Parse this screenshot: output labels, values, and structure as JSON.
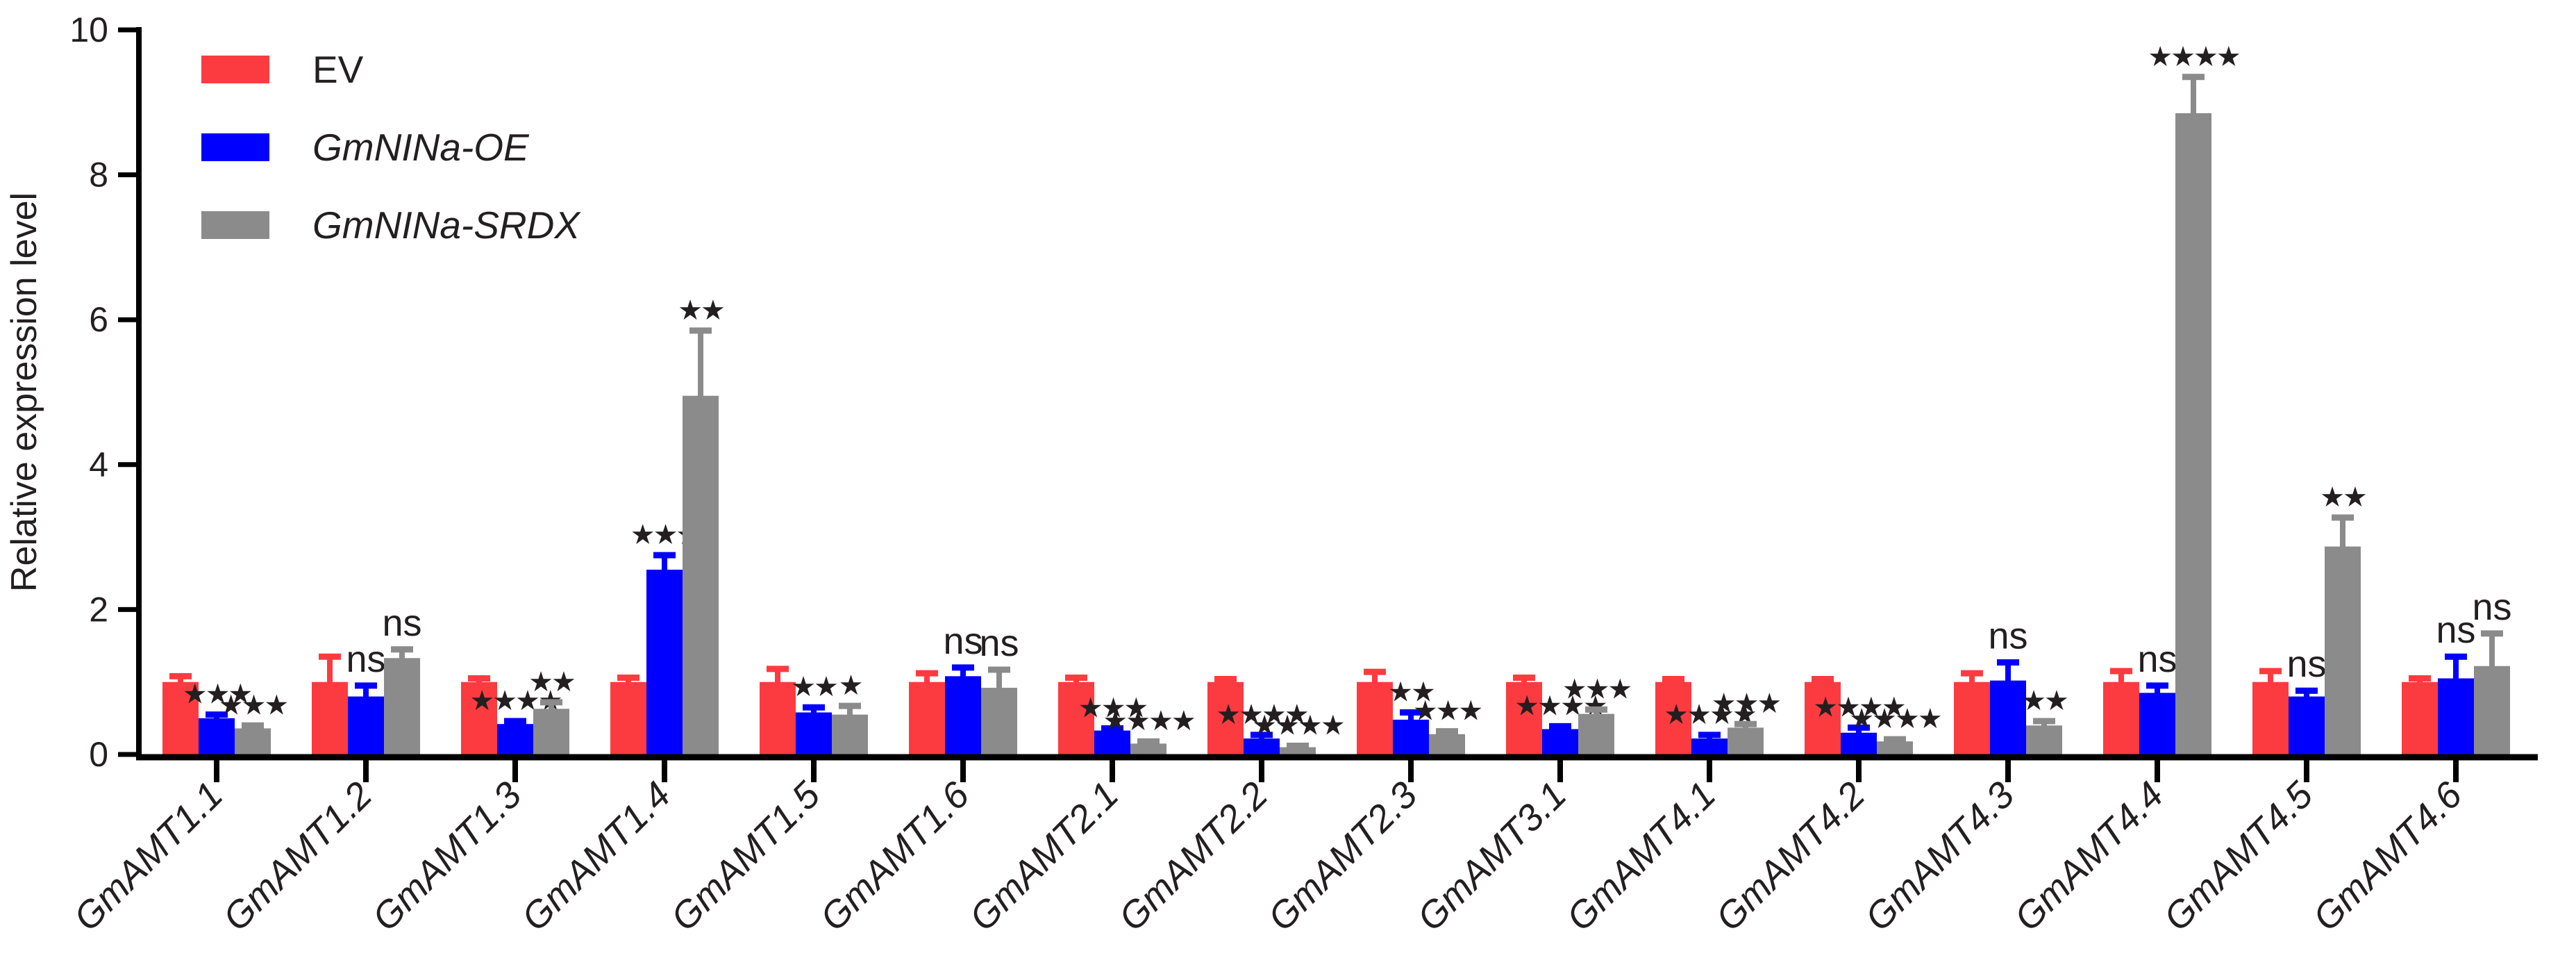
{
  "chart_data": {
    "type": "bar",
    "title": "",
    "ylabel": "Relative expression level",
    "xlabel": "",
    "ylim": [
      0,
      10
    ],
    "yticks": [
      0,
      2,
      4,
      6,
      8,
      10
    ],
    "grid": false,
    "legend_position": "top-left",
    "categories": [
      "GmAMT1.1",
      "GmAMT1.2",
      "GmAMT1.3",
      "GmAMT1.4",
      "GmAMT1.5",
      "GmAMT1.6",
      "GmAMT2.1",
      "GmAMT2.2",
      "GmAMT2.3",
      "GmAMT3.1",
      "GmAMT4.1",
      "GmAMT4.2",
      "GmAMT4.3",
      "GmAMT4.4",
      "GmAMT4.5",
      "GmAMT4.6"
    ],
    "series": [
      {
        "name": "EV",
        "italic": false,
        "color": "#FC3B40",
        "values": [
          1.0,
          1.0,
          1.0,
          1.0,
          1.0,
          1.0,
          1.0,
          1.0,
          1.0,
          1.0,
          1.0,
          1.0,
          1.0,
          1.0,
          1.0,
          1.0
        ],
        "errors": [
          0.08,
          0.35,
          0.05,
          0.06,
          0.18,
          0.12,
          0.06,
          0.04,
          0.14,
          0.06,
          0.04,
          0.04,
          0.12,
          0.15,
          0.15,
          0.05
        ],
        "significance": [
          null,
          null,
          null,
          null,
          null,
          null,
          null,
          null,
          null,
          null,
          null,
          null,
          null,
          null,
          null,
          null
        ]
      },
      {
        "name": "GmNINa-OE",
        "italic": true,
        "color": "#0000FF",
        "values": [
          0.5,
          0.8,
          0.42,
          2.55,
          0.58,
          1.08,
          0.33,
          0.22,
          0.48,
          0.35,
          0.22,
          0.3,
          1.02,
          0.85,
          0.8,
          1.05
        ],
        "errors": [
          0.05,
          0.15,
          0.04,
          0.2,
          0.07,
          0.12,
          0.03,
          0.05,
          0.1,
          0.04,
          0.05,
          0.07,
          0.25,
          0.1,
          0.08,
          0.3
        ],
        "significance": [
          "***",
          "ns",
          "****",
          "***",
          "**",
          "ns",
          "***",
          "****",
          "**",
          "****",
          "****",
          "****",
          "ns",
          "ns",
          "ns",
          "ns"
        ]
      },
      {
        "name": "GmNINa-SRDX",
        "italic": true,
        "color": "#8B8B8B",
        "values": [
          0.36,
          1.33,
          0.63,
          4.95,
          0.55,
          0.92,
          0.15,
          0.1,
          0.28,
          0.56,
          0.37,
          0.18,
          0.4,
          8.85,
          2.87,
          1.22
        ],
        "errors": [
          0.04,
          0.12,
          0.09,
          0.9,
          0.12,
          0.25,
          0.03,
          0.02,
          0.04,
          0.06,
          0.05,
          0.03,
          0.06,
          0.5,
          0.4,
          0.45
        ],
        "significance": [
          "***",
          "ns",
          "**",
          "**",
          "*",
          "ns",
          "****",
          "****",
          "***",
          "***",
          "***",
          "****",
          "**",
          "****",
          "**",
          "ns"
        ]
      }
    ]
  },
  "style": {
    "axis_color": "#000000",
    "text_color": "#231F20",
    "star_glyph": "★"
  }
}
